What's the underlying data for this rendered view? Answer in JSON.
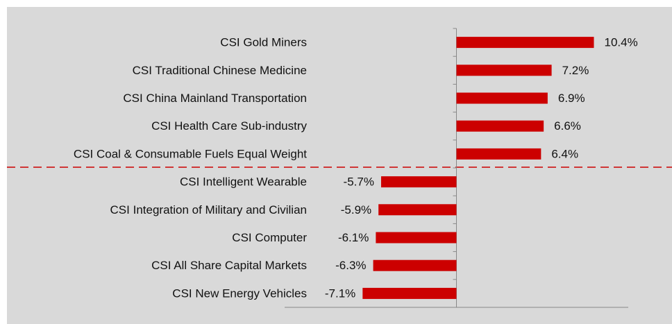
{
  "chart_data": {
    "type": "bar",
    "orientation": "horizontal",
    "categories": [
      "CSI Gold Miners",
      "CSI Traditional Chinese Medicine",
      "CSI China Mainland Transportation",
      "CSI Health Care Sub-industry",
      "CSI Coal & Consumable Fuels Equal Weight",
      "CSI Intelligent Wearable",
      "CSI Integration of Military and Civilian",
      "CSI Computer",
      "CSI All Share Capital Markets",
      "CSI New Energy Vehicles"
    ],
    "values": [
      10.4,
      7.2,
      6.9,
      6.6,
      6.4,
      -5.7,
      -5.9,
      -6.1,
      -6.3,
      -7.1
    ],
    "value_labels": [
      "10.4%",
      "7.2%",
      "6.9%",
      "6.6%",
      "6.4%",
      "-5.7%",
      "-5.9%",
      "-6.1%",
      "-6.3%",
      "-7.1%"
    ],
    "color": "#cc0000",
    "xlim": [
      -13,
      13
    ]
  }
}
